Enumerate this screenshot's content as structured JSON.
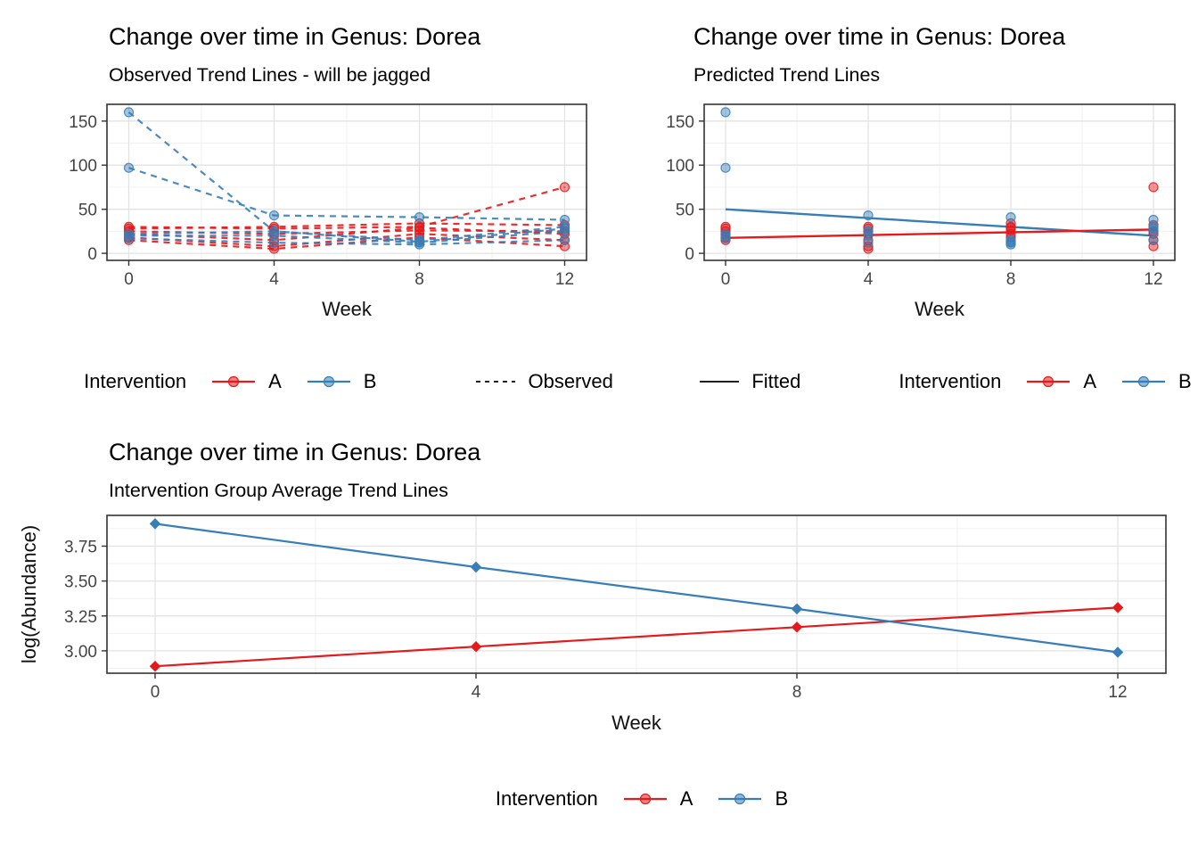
{
  "colors": {
    "intervention_a": "#E41A1C",
    "intervention_b": "#377EB8",
    "gridline_major": "#E3E3E3",
    "gridline_minor": "#F0F0F0",
    "panel_border": "#333333",
    "tick_label": "#444444"
  },
  "chart_data": "see charts",
  "charts": [
    {
      "type": "line",
      "title": "Change over time in Genus: Dorea",
      "subtitle": "Observed Trend Lines - will be jagged",
      "xlabel": "Week",
      "x": [
        0,
        4,
        8,
        12
      ],
      "x_ticks": [
        0,
        4,
        8,
        12
      ],
      "x_tick_labels": [
        "0",
        "4",
        "8",
        "12"
      ],
      "x_minor": [
        2,
        6,
        10
      ],
      "y_ticks": [
        0,
        50,
        100,
        150
      ],
      "y_tick_labels": [
        "0",
        "50",
        "100",
        "150"
      ],
      "y_minor": [
        25,
        75,
        125
      ],
      "xlim": [
        -0.6,
        12.6
      ],
      "ylim": [
        -8,
        169
      ],
      "line_style": "dashed",
      "subjects": [
        {
          "group": "A",
          "values": [
            30,
            28,
            30,
            75
          ]
        },
        {
          "group": "A",
          "values": [
            28,
            30,
            34,
            32
          ]
        },
        {
          "group": "A",
          "values": [
            25,
            22,
            26,
            25
          ]
        },
        {
          "group": "A",
          "values": [
            22,
            15,
            29,
            22
          ]
        },
        {
          "group": "A",
          "values": [
            18,
            8,
            22,
            15
          ]
        },
        {
          "group": "A",
          "values": [
            15,
            5,
            18,
            8
          ]
        },
        {
          "group": "B",
          "values": [
            160,
            25,
            13,
            28
          ]
        },
        {
          "group": "B",
          "values": [
            97,
            43,
            41,
            38
          ]
        },
        {
          "group": "B",
          "values": [
            22,
            25,
            15,
            30
          ]
        },
        {
          "group": "B",
          "values": [
            20,
            20,
            12,
            25
          ]
        },
        {
          "group": "B",
          "values": [
            17,
            12,
            10,
            15
          ]
        }
      ],
      "legend": {
        "title": "Intervention",
        "items": [
          {
            "label": "A"
          },
          {
            "label": "B"
          }
        ],
        "linetype_label": "Observed"
      }
    },
    {
      "type": "scatter",
      "title": "Change over time in Genus: Dorea",
      "subtitle": "Predicted Trend Lines",
      "xlabel": "Week",
      "x": [
        0,
        4,
        8,
        12
      ],
      "x_ticks": [
        0,
        4,
        8,
        12
      ],
      "x_tick_labels": [
        "0",
        "4",
        "8",
        "12"
      ],
      "x_minor": [
        2,
        6,
        10
      ],
      "y_ticks": [
        0,
        50,
        100,
        150
      ],
      "y_tick_labels": [
        "0",
        "50",
        "100",
        "150"
      ],
      "y_minor": [
        25,
        75,
        125
      ],
      "xlim": [
        -0.6,
        12.6
      ],
      "ylim": [
        -8,
        169
      ],
      "line_style": "none",
      "subjects": [
        {
          "group": "A",
          "values": [
            30,
            28,
            30,
            75
          ]
        },
        {
          "group": "A",
          "values": [
            28,
            30,
            34,
            32
          ]
        },
        {
          "group": "A",
          "values": [
            25,
            22,
            26,
            25
          ]
        },
        {
          "group": "A",
          "values": [
            22,
            15,
            29,
            22
          ]
        },
        {
          "group": "A",
          "values": [
            18,
            8,
            22,
            15
          ]
        },
        {
          "group": "A",
          "values": [
            15,
            5,
            18,
            8
          ]
        },
        {
          "group": "B",
          "values": [
            160,
            25,
            13,
            28
          ]
        },
        {
          "group": "B",
          "values": [
            97,
            43,
            41,
            38
          ]
        },
        {
          "group": "B",
          "values": [
            22,
            25,
            15,
            30
          ]
        },
        {
          "group": "B",
          "values": [
            20,
            20,
            12,
            25
          ]
        },
        {
          "group": "B",
          "values": [
            17,
            12,
            10,
            15
          ]
        }
      ],
      "fitted": [
        {
          "group": "B",
          "x": [
            0,
            12
          ],
          "y": [
            50,
            20
          ]
        },
        {
          "group": "A",
          "x": [
            0,
            12
          ],
          "y": [
            17.5,
            27
          ]
        }
      ],
      "legend": {
        "linetype_label": "Fitted",
        "title": "Intervention",
        "items": [
          {
            "label": "A"
          },
          {
            "label": "B"
          }
        ]
      }
    },
    {
      "type": "line",
      "title": "Change over time in Genus: Dorea",
      "subtitle": "Intervention Group Average Trend Lines",
      "xlabel": "Week",
      "ylabel": "log(Abundance)",
      "x": [
        0,
        4,
        8,
        12
      ],
      "x_ticks": [
        0,
        4,
        8,
        12
      ],
      "x_tick_labels": [
        "0",
        "4",
        "8",
        "12"
      ],
      "x_minor": [
        2,
        6,
        10
      ],
      "y_ticks": [
        3.0,
        3.25,
        3.5,
        3.75
      ],
      "y_tick_labels": [
        "3.00",
        "3.25",
        "3.50",
        "3.75"
      ],
      "y_minor": [
        2.875,
        3.125,
        3.375,
        3.625,
        3.875
      ],
      "xlim": [
        -0.6,
        12.6
      ],
      "ylim": [
        2.84,
        3.97
      ],
      "series": [
        {
          "name": "A",
          "values": [
            2.89,
            3.03,
            3.17,
            3.31
          ]
        },
        {
          "name": "B",
          "values": [
            3.91,
            3.6,
            3.3,
            2.99
          ]
        }
      ],
      "legend": {
        "title": "Intervention",
        "items": [
          {
            "label": "A"
          },
          {
            "label": "B"
          }
        ]
      }
    }
  ]
}
